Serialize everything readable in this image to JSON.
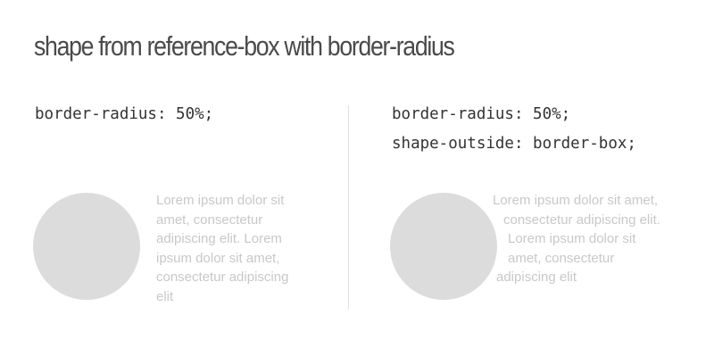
{
  "title": "shape from reference-box with border-radius",
  "colors": {
    "title": "#4a4a4a",
    "code": "#333333",
    "shape": "#dcdcdc",
    "text": "#c8c8c8",
    "divider": "#e0e0e0"
  },
  "left": {
    "code_lines": [
      "border-radius: 50%;"
    ],
    "text_lines": [
      "Lorem ipsum dolor sit",
      "amet, consectetur",
      "adipiscing elit. Lorem",
      "ipsum dolor sit amet,",
      "consectetur adipiscing",
      "elit"
    ]
  },
  "right": {
    "code_lines": [
      "border-radius: 50%;",
      "shape-outside: border-box;"
    ],
    "text_lines": [
      "Lorem ipsum dolor sit amet,",
      "consectetur adipiscing elit.",
      "Lorem ipsum dolor sit",
      "amet, consectetur",
      "adipiscing elit"
    ]
  }
}
